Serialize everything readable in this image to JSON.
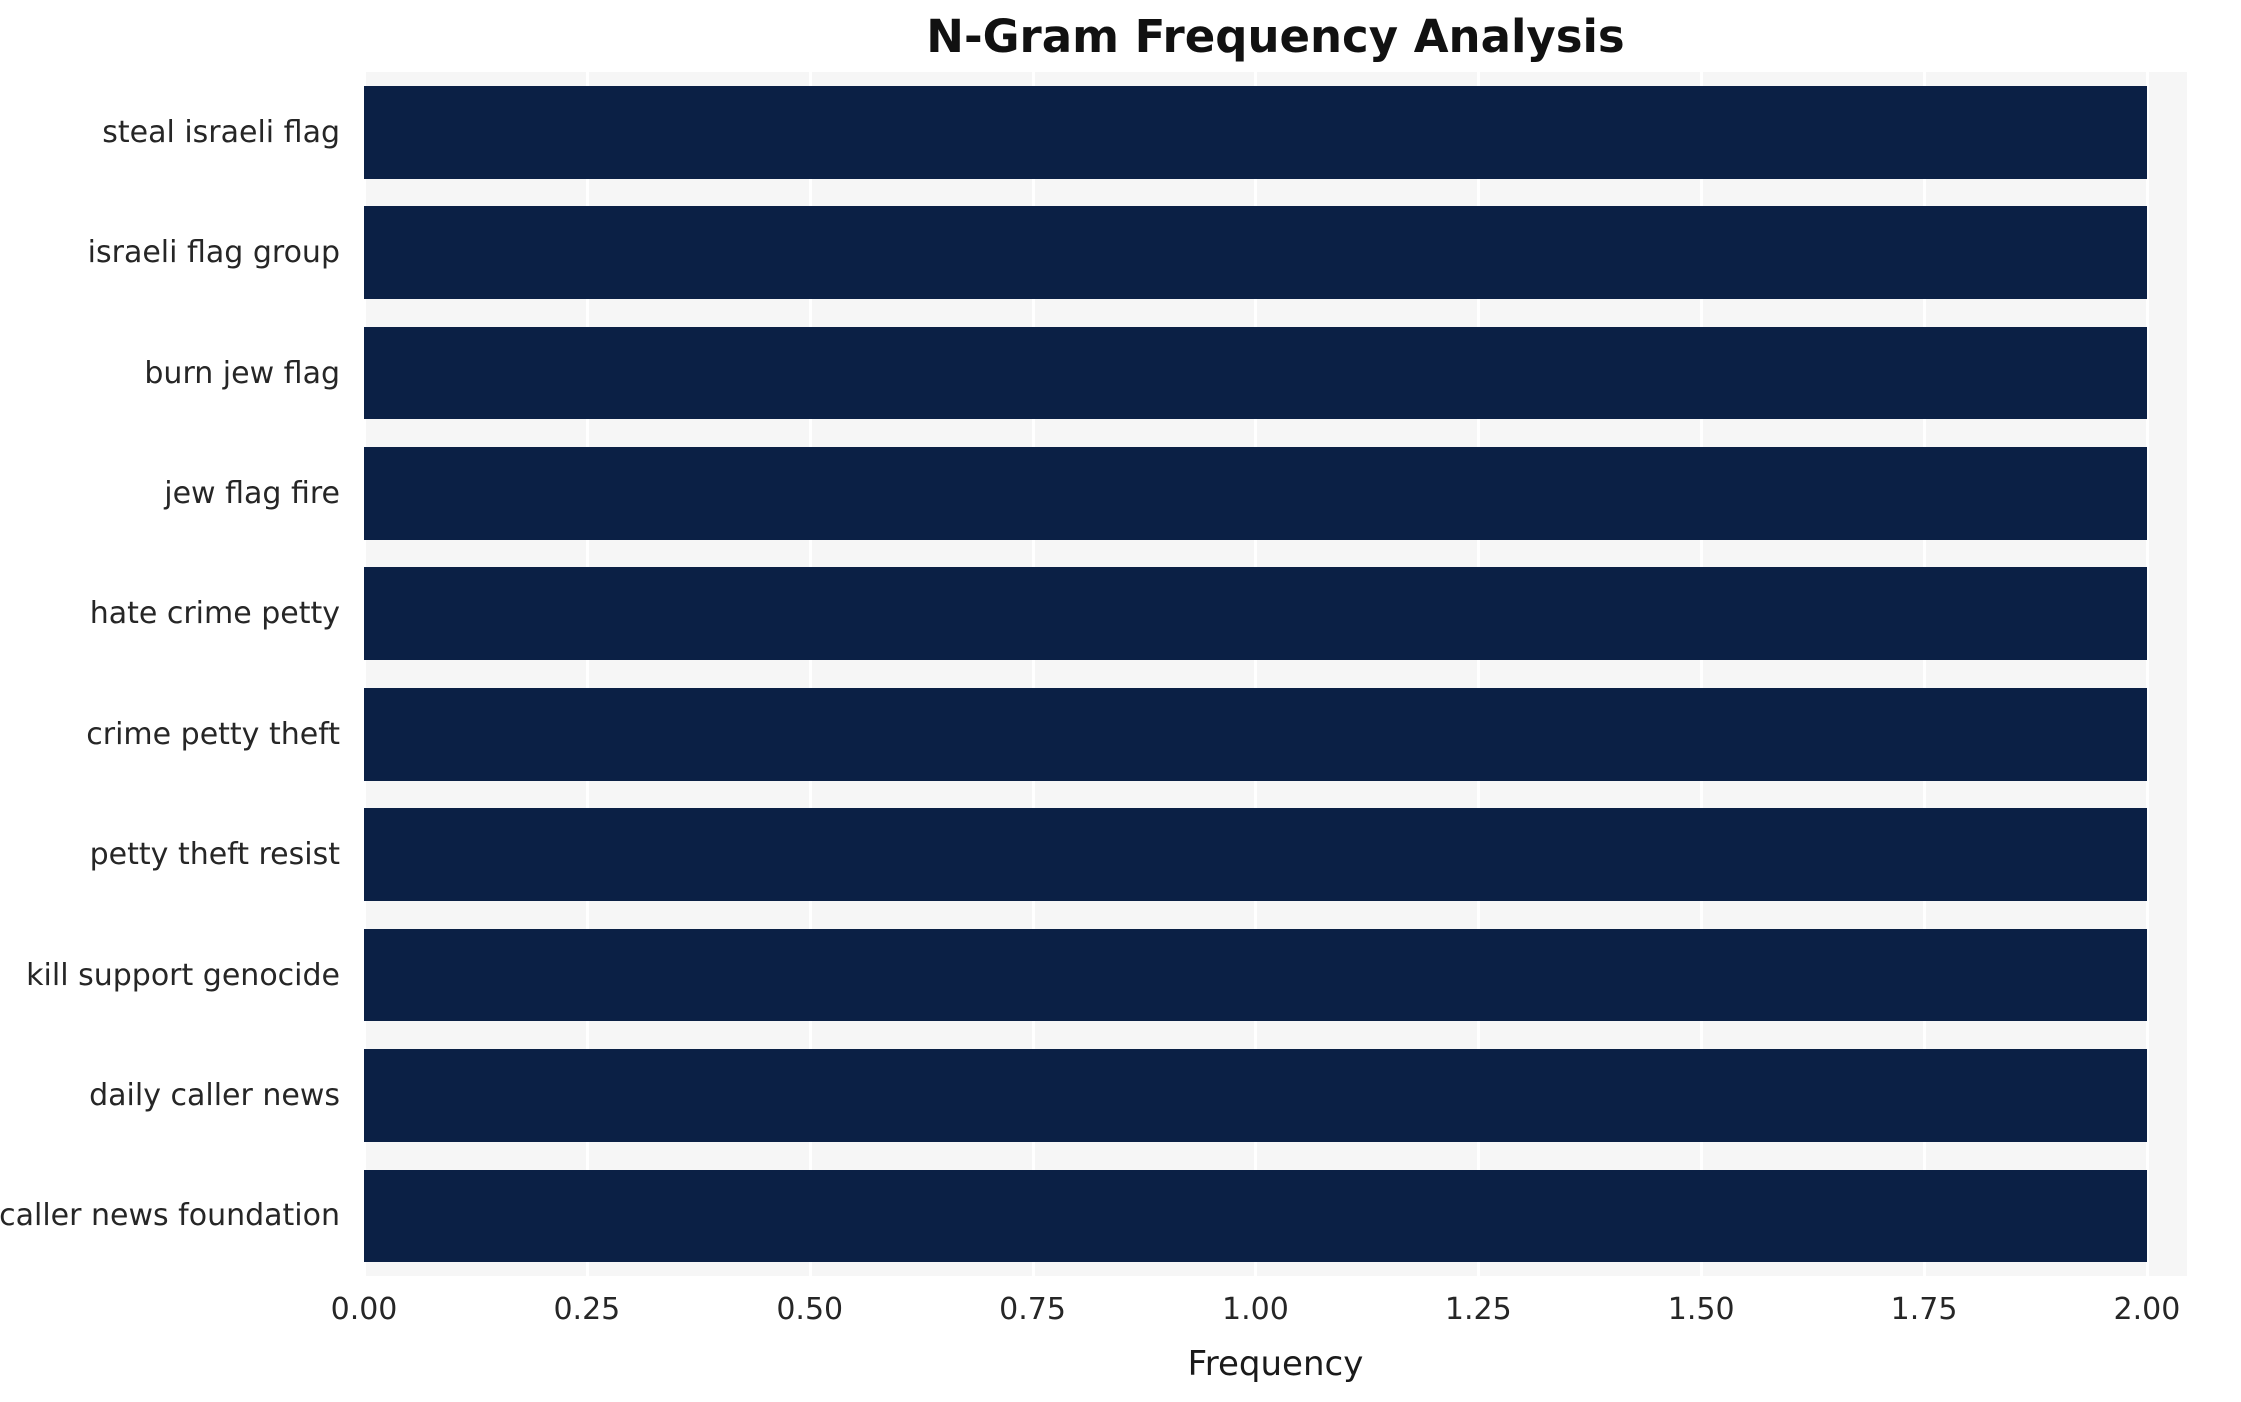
{
  "title": "N-Gram Frequency Analysis",
  "chart_data": {
    "type": "bar",
    "orientation": "horizontal",
    "title": "N-Gram Frequency Analysis",
    "xlabel": "Frequency",
    "ylabel": "",
    "categories": [
      "steal israeli flag",
      "israeli flag group",
      "burn jew flag",
      "jew flag fire",
      "hate crime petty",
      "crime petty theft",
      "petty theft resist",
      "kill support genocide",
      "daily caller news",
      "caller news foundation"
    ],
    "values": [
      2,
      2,
      2,
      2,
      2,
      2,
      2,
      2,
      2,
      2
    ],
    "xlim": [
      0,
      2.0
    ],
    "xticks": [
      0,
      0.25,
      0.5,
      0.75,
      1.0,
      1.25,
      1.5,
      1.75,
      2.0
    ],
    "xtick_labels": [
      "0.00",
      "0.25",
      "0.50",
      "0.75",
      "1.00",
      "1.25",
      "1.50",
      "1.75",
      "2.00"
    ],
    "grid": true,
    "legend": false,
    "colors": {
      "bar": "#0b2045",
      "plot_background": "#f6f6f6",
      "gridline": "#ffffff"
    }
  }
}
